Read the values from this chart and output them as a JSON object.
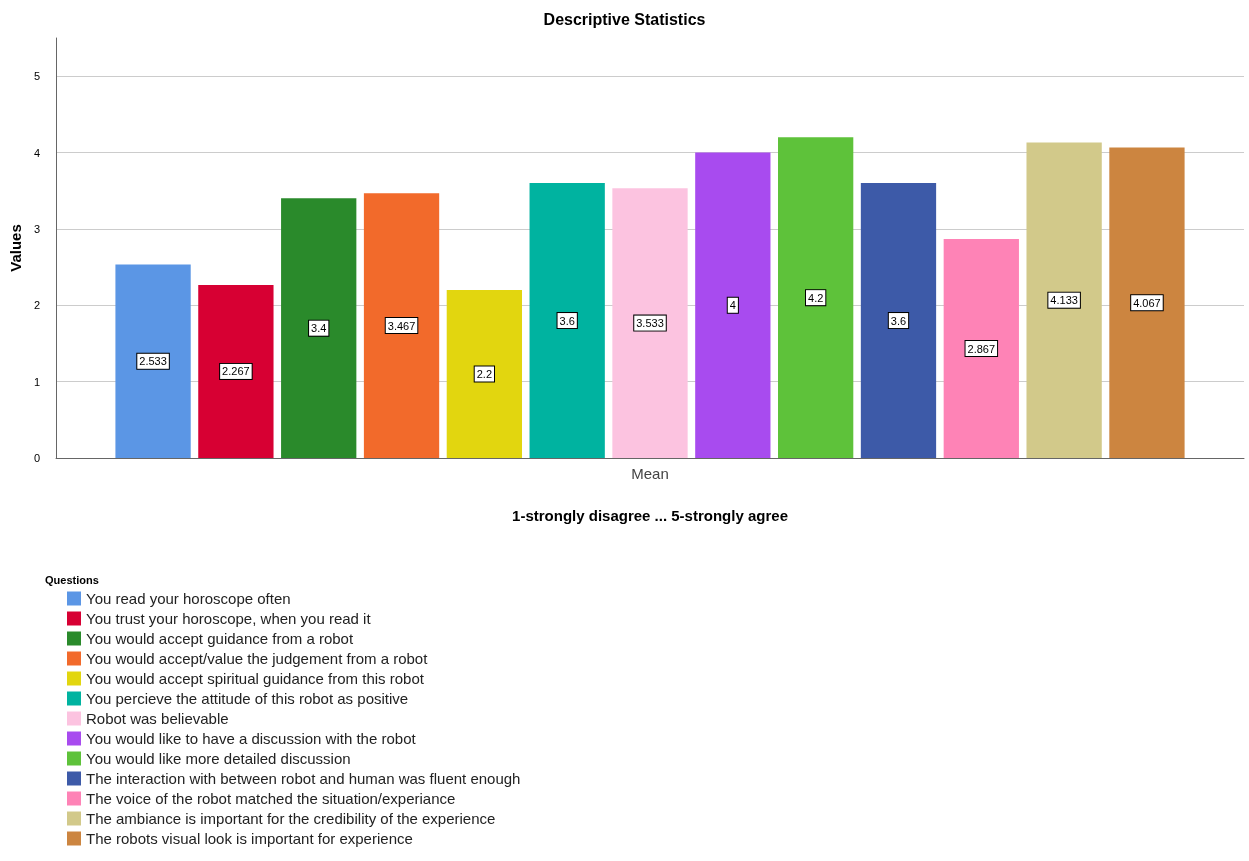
{
  "chart_data": {
    "type": "bar",
    "title": "Descriptive Statistics",
    "xlabel": "1-strongly disagree ... 5-strongly agree",
    "ylabel": "Values",
    "legend_title": "Questions",
    "categories": [
      "Mean"
    ],
    "series": [
      {
        "name": "You read your horoscope often",
        "color": "#5b96e5",
        "values": [
          2.533
        ]
      },
      {
        "name": "You trust your horoscope, when you read it",
        "color": "#d70033",
        "values": [
          2.267
        ]
      },
      {
        "name": "You would accept guidance from a robot",
        "color": "#2a8a2b",
        "values": [
          3.4
        ]
      },
      {
        "name": "You would accept/value the judgement from a robot",
        "color": "#f26a2b",
        "values": [
          3.467
        ]
      },
      {
        "name": "You would accept spiritual guidance from this robot",
        "color": "#e2d60f",
        "values": [
          2.2
        ]
      },
      {
        "name": "You percieve the attitude of this robot as positive",
        "color": "#00b3a0",
        "values": [
          3.6
        ]
      },
      {
        "name": "Robot was believable",
        "color": "#fcc3e0",
        "values": [
          3.533
        ]
      },
      {
        "name": "You would like to have a discussion with the robot",
        "color": "#a84bef",
        "values": [
          4
        ]
      },
      {
        "name": "You would like more detailed discussion",
        "color": "#5ec23a",
        "values": [
          4.2
        ]
      },
      {
        "name": "The interaction with between robot and human was fluent enough",
        "color": "#3d5aa8",
        "values": [
          3.6
        ]
      },
      {
        "name": "The voice of the robot matched the situation/experiance",
        "color": "#fe83b6",
        "values": [
          2.867
        ]
      },
      {
        "name": "The ambiance is important for the credibility of the experience",
        "color": "#d2c98a",
        "values": [
          4.133
        ]
      },
      {
        "name": "The robots visual look is important for experience",
        "color": "#cc8540",
        "values": [
          4.067
        ]
      }
    ],
    "ylim": [
      0,
      5.5
    ],
    "yticks": [
      0,
      1,
      2,
      3,
      4,
      5
    ],
    "grid": "y",
    "legend": "bottom left",
    "data_labels": true
  }
}
